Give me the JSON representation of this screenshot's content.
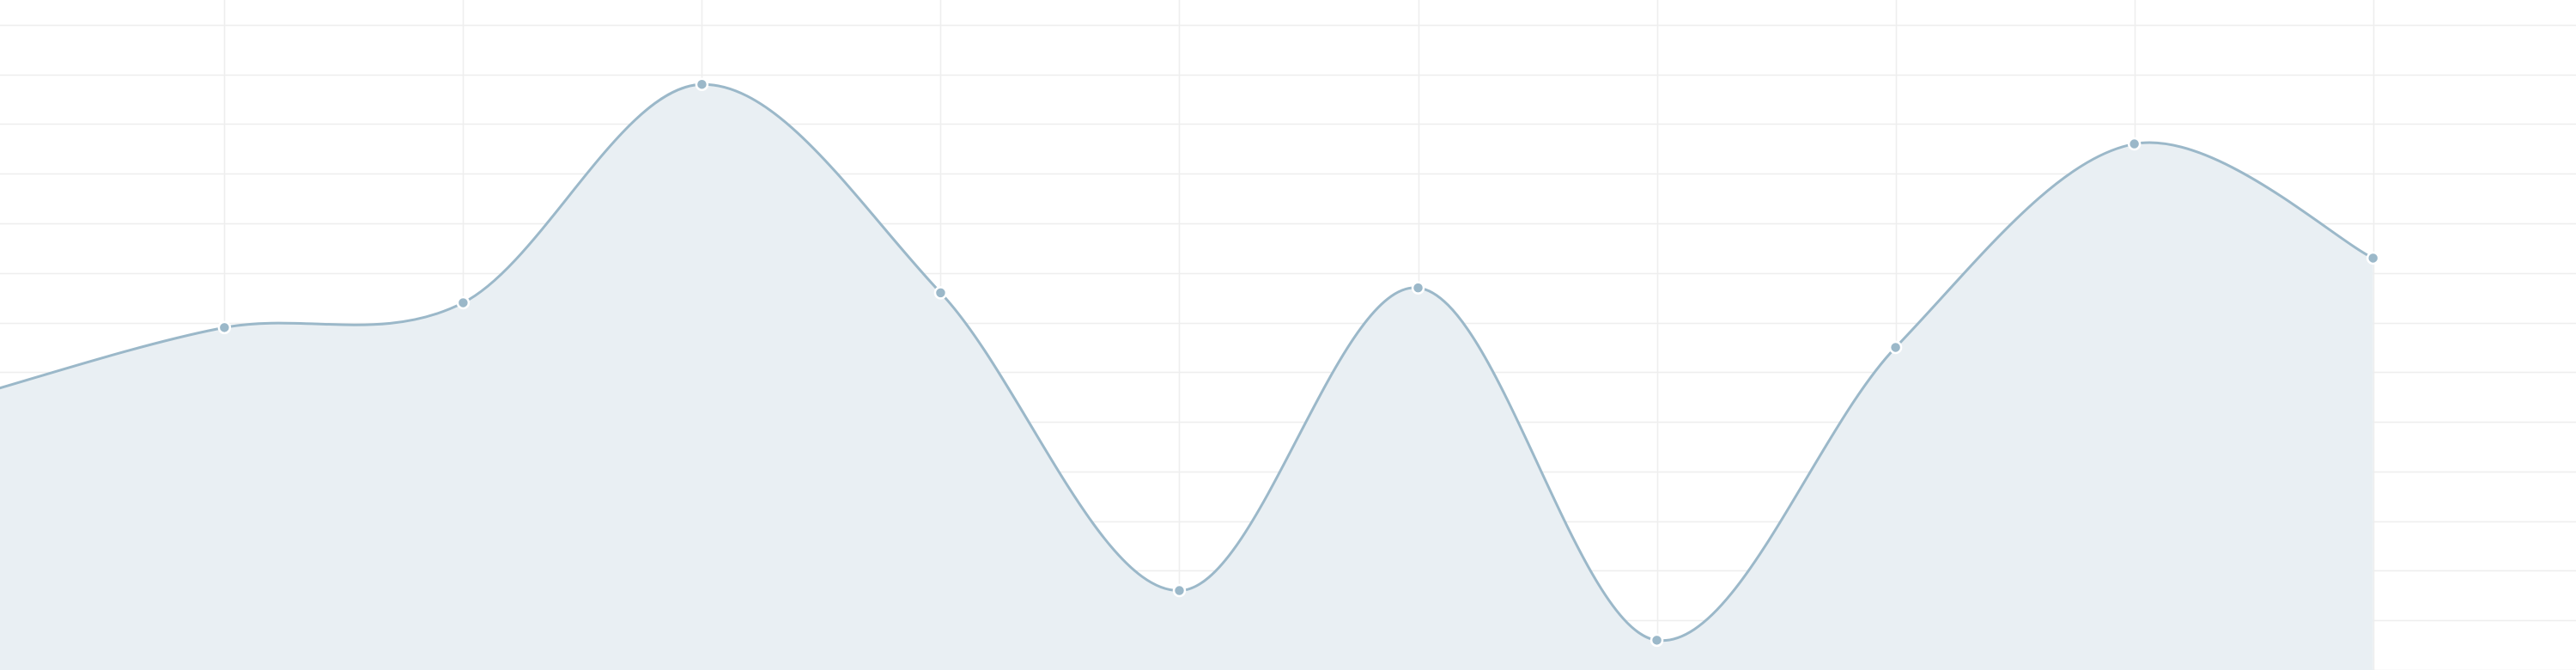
{
  "chart_data": {
    "type": "area",
    "title": "",
    "xlabel": "",
    "ylabel": "",
    "x": [
      0,
      1,
      2,
      3,
      4,
      5,
      6,
      7,
      8,
      9,
      10
    ],
    "series": [
      {
        "values": [
          5.6,
          6.9,
          7.4,
          11.8,
          7.6,
          1.6,
          7.7,
          0.6,
          6.5,
          10.6,
          8.3
        ]
      }
    ],
    "xlim": [
      0.06,
      10.85
    ],
    "ylim": [
      0,
      13.5
    ],
    "grid": true,
    "legend": "none",
    "colors": {
      "line": "#9bb8c9",
      "fill": "#e9eff3",
      "point": "#9bb8c9",
      "grid": "#eeeeee"
    }
  }
}
